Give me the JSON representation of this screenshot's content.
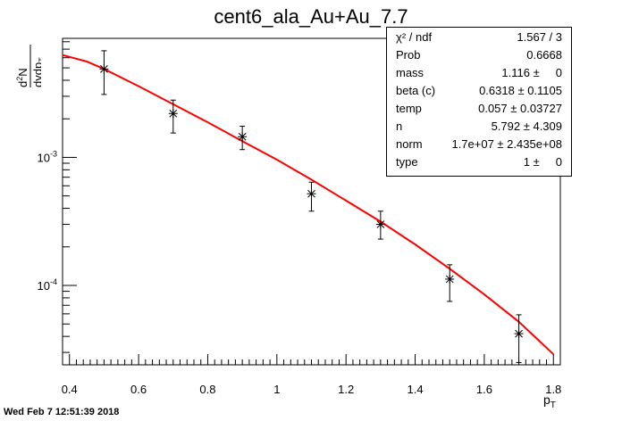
{
  "chart_data": {
    "type": "scatter",
    "title": "cent6_ala_Au+Au_7.7",
    "xlabel": "p_T",
    "ylabel": "d²N/dydp_T",
    "xlim": [
      0.38,
      1.82
    ],
    "ylim": [
      2.4e-05,
      0.0085
    ],
    "yscale": "log",
    "grid": false,
    "x_ticks": [
      0.4,
      0.6,
      0.8,
      1.0,
      1.2,
      1.4,
      1.6,
      1.8
    ],
    "x_tick_labels": [
      "0.4",
      "0.6",
      "0.8",
      "1",
      "1.2",
      "1.4",
      "1.6",
      "1.8"
    ],
    "y_tick_labels": [
      "10^-3",
      "10^-4"
    ],
    "series": [
      {
        "points": [
          {
            "x": 0.5,
            "y": 0.0049,
            "ylow": 0.0031,
            "yhigh": 0.0068
          },
          {
            "x": 0.7,
            "y": 0.0022,
            "ylow": 0.00155,
            "yhigh": 0.0028
          },
          {
            "x": 0.9,
            "y": 0.00145,
            "ylow": 0.00115,
            "yhigh": 0.00175
          },
          {
            "x": 1.1,
            "y": 0.00052,
            "ylow": 0.00038,
            "yhigh": 0.00064
          },
          {
            "x": 1.3,
            "y": 0.0003,
            "ylow": 0.00023,
            "yhigh": 0.00038
          },
          {
            "x": 1.5,
            "y": 0.000112,
            "ylow": 7.5e-05,
            "yhigh": 0.000145
          },
          {
            "x": 1.7,
            "y": 4.2e-05,
            "ylow": 2.5e-05,
            "yhigh": 5.9e-05
          }
        ]
      },
      {
        "type": "line",
        "color": "#ff0000",
        "x": [
          0.38,
          0.45,
          0.5,
          0.6,
          0.7,
          0.8,
          0.9,
          1.0,
          1.1,
          1.2,
          1.3,
          1.4,
          1.5,
          1.6,
          1.7,
          1.8
        ],
        "y": [
          0.0063,
          0.0056,
          0.0049,
          0.0036,
          0.0026,
          0.00188,
          0.00134,
          0.00096,
          0.00067,
          0.00046,
          0.000315,
          0.000209,
          0.000135,
          8.5e-05,
          5.2e-05,
          2.9e-05
        ]
      }
    ]
  },
  "stats": [
    {
      "name": "χ² / ndf",
      "value": "1.567 / 3"
    },
    {
      "name": "Prob",
      "value": "0.6668"
    },
    {
      "name": "mass",
      "value": "1.116 ±     0"
    },
    {
      "name": "beta (c)",
      "value": "0.6318 ± 0.1105"
    },
    {
      "name": "temp",
      "value": "0.057 ± 0.03727"
    },
    {
      "name": "n",
      "value": "5.792 ± 4.309"
    },
    {
      "name": "norm",
      "value": "1.7e+07 ± 2.435e+08"
    },
    {
      "name": "type",
      "value": "1 ±     0"
    }
  ],
  "footer": "Wed Feb  7 12:51:39 2018"
}
